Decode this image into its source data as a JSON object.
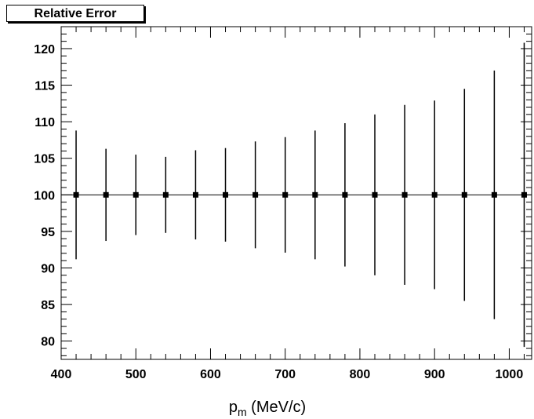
{
  "chart_data": {
    "type": "scatter",
    "title": "Relative Error",
    "xlabel_main": "p",
    "xlabel_sub": "m",
    "xlabel_rest": " (MeV/c)",
    "ylabel": "",
    "xlim": [
      400,
      1030
    ],
    "ylim": [
      77.5,
      123
    ],
    "x_major_ticks": [
      400,
      500,
      600,
      700,
      800,
      900,
      1000
    ],
    "y_major_ticks": [
      80,
      85,
      90,
      95,
      100,
      105,
      110,
      115,
      120
    ],
    "grid": false,
    "reference_line_y": 100,
    "points": [
      {
        "x": 420,
        "y": 100,
        "err": 8.8
      },
      {
        "x": 460,
        "y": 100,
        "err": 6.3
      },
      {
        "x": 500,
        "y": 100,
        "err": 5.5
      },
      {
        "x": 540,
        "y": 100,
        "err": 5.2
      },
      {
        "x": 580,
        "y": 100,
        "err": 6.1
      },
      {
        "x": 620,
        "y": 100,
        "err": 6.4
      },
      {
        "x": 660,
        "y": 100,
        "err": 7.3
      },
      {
        "x": 700,
        "y": 100,
        "err": 7.9
      },
      {
        "x": 740,
        "y": 100,
        "err": 8.8
      },
      {
        "x": 780,
        "y": 100,
        "err": 9.8
      },
      {
        "x": 820,
        "y": 100,
        "err": 11.0
      },
      {
        "x": 860,
        "y": 100,
        "err": 12.3
      },
      {
        "x": 900,
        "y": 100,
        "err": 12.9
      },
      {
        "x": 940,
        "y": 100,
        "err": 14.5
      },
      {
        "x": 980,
        "y": 100,
        "err": 17.0
      },
      {
        "x": 1020,
        "y": 100,
        "err": 20.8
      }
    ],
    "colors": {
      "marker": "#000000",
      "axis": "#000000",
      "background": "#ffffff"
    }
  }
}
